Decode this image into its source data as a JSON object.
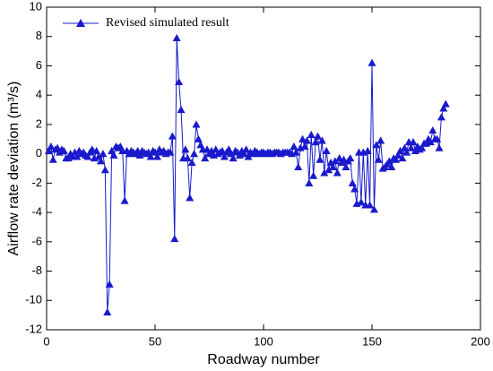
{
  "chart_data": {
    "type": "line",
    "xlabel": "Roadway number",
    "ylabel": "Airflow rate deviation (m³/s)",
    "xlim": [
      0,
      200
    ],
    "xticks": [
      0,
      50,
      100,
      150,
      200
    ],
    "ylim": [
      -12,
      10
    ],
    "yticks": [
      -12,
      -10,
      -8,
      -6,
      -4,
      -2,
      0,
      2,
      4,
      6,
      8,
      10
    ],
    "legend": "upper left",
    "x": [
      1,
      2,
      3,
      4,
      5,
      6,
      7,
      8,
      9,
      10,
      11,
      12,
      13,
      14,
      15,
      16,
      17,
      18,
      19,
      20,
      21,
      22,
      23,
      24,
      25,
      26,
      27,
      28,
      29,
      30,
      31,
      32,
      33,
      34,
      35,
      36,
      37,
      38,
      39,
      40,
      41,
      42,
      43,
      44,
      45,
      46,
      47,
      48,
      49,
      50,
      51,
      52,
      53,
      54,
      55,
      56,
      57,
      58,
      59,
      60,
      61,
      62,
      63,
      64,
      65,
      66,
      67,
      68,
      69,
      70,
      71,
      72,
      73,
      74,
      75,
      76,
      77,
      78,
      79,
      80,
      81,
      82,
      83,
      84,
      85,
      86,
      87,
      88,
      89,
      90,
      91,
      92,
      93,
      94,
      95,
      96,
      97,
      98,
      99,
      100,
      101,
      102,
      103,
      104,
      105,
      106,
      107,
      108,
      109,
      110,
      111,
      112,
      113,
      114,
      115,
      116,
      117,
      118,
      119,
      120,
      121,
      122,
      123,
      124,
      125,
      126,
      127,
      128,
      129,
      130,
      131,
      132,
      133,
      134,
      135,
      136,
      137,
      138,
      139,
      140,
      141,
      142,
      143,
      144,
      145,
      146,
      147,
      148,
      149,
      150,
      151,
      152,
      153,
      154,
      155,
      156,
      157,
      158,
      159,
      160,
      161,
      162,
      163,
      164,
      165,
      166,
      167,
      168,
      169,
      170,
      171,
      172,
      173,
      174,
      175,
      176,
      177,
      178,
      179,
      180,
      181,
      182,
      183,
      184
    ],
    "series": [
      {
        "name": "Revised simulated result",
        "color": "#1a1acc",
        "values": [
          0.2,
          0.5,
          -0.4,
          0.3,
          0.4,
          0.1,
          0.3,
          0.2,
          -0.3,
          -0.3,
          0,
          -0.2,
          0.1,
          -0.2,
          0.2,
          0,
          0.1,
          -0.1,
          -0.2,
          0.1,
          0.3,
          -0.3,
          0.2,
          -0.2,
          -0.5,
          0,
          -1.1,
          -10.8,
          -8.9,
          0.2,
          -0.1,
          0.5,
          0.4,
          0.5,
          0.2,
          -3.2,
          0.2,
          0,
          0.2,
          0.1,
          0,
          0.2,
          -0.1,
          0.2,
          0.1,
          0,
          0.1,
          -0.2,
          0.2,
          0.1,
          -0.2,
          0.3,
          0.1,
          0.2,
          0,
          0.1,
          0.1,
          1.2,
          -5.8,
          7.9,
          4.9,
          3.0,
          -0.3,
          0.3,
          -0.3,
          -3.0,
          -0.6,
          0,
          2.0,
          1.0,
          0.6,
          0.3,
          -0.3,
          0.3,
          0,
          0.2,
          -0.1,
          0.3,
          0,
          0.1,
          0.2,
          -0.2,
          0.1,
          0.3,
          0,
          -0.3,
          0.2,
          0.1,
          -0.1,
          0.2,
          0,
          0.3,
          -0.2,
          0.1,
          0,
          0.2,
          0.1,
          0,
          0.1,
          0.1,
          0,
          0.1,
          0.1,
          0,
          0.1,
          0.1,
          0.1,
          0,
          0.1,
          0.1,
          0.1,
          0.1,
          0,
          0.5,
          0.1,
          -0.9,
          0.4,
          1.0,
          0.5,
          0.9,
          -2.0,
          1.3,
          -1.5,
          0.8,
          1.2,
          -0.4,
          0.9,
          -1.3,
          0.2,
          -1.1,
          -0.6,
          -0.9,
          -0.5,
          -1.3,
          -0.3,
          -0.6,
          -0.4,
          -0.9,
          -0.5,
          -0.3,
          -2.0,
          -2.4,
          -3.4,
          0.1,
          -3.3,
          0.1,
          -3.5,
          0.2,
          -3.5,
          6.2,
          -3.8,
          0.6,
          -0.4,
          0.9,
          -1.0,
          -0.9,
          -0.7,
          -0.5,
          -0.9,
          -0.3,
          -0.4,
          -0.1,
          0.2,
          -0.3,
          0.4,
          0.1,
          0.8,
          0.4,
          0.8,
          0.2,
          0.5,
          0.3,
          0.4,
          0.7,
          0.7,
          1.0,
          0.8,
          1.6,
          1.0,
          1.0,
          0.4,
          2.5,
          3.1,
          3.4
        ]
      }
    ]
  }
}
